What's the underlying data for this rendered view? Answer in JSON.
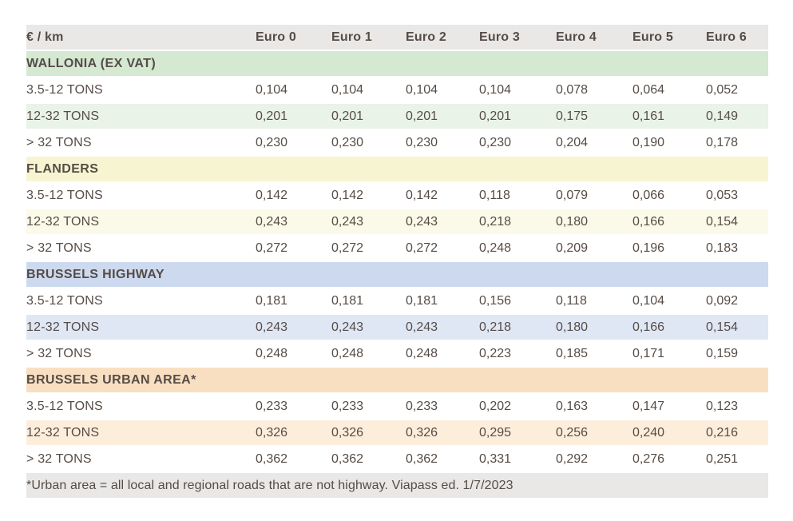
{
  "chart_data": {
    "type": "table",
    "unit_label": "€ / km",
    "columns": [
      "Euro 0",
      "Euro 1",
      "Euro 2",
      "Euro 3",
      "Euro 4",
      "Euro 5",
      "Euro 6"
    ],
    "sections": [
      {
        "name": "WALLONIA (EX VAT)",
        "color": "green",
        "rows": [
          {
            "label": "3.5-12 TONS",
            "values": [
              "0,104",
              "0,104",
              "0,104",
              "0,104",
              "0,078",
              "0,064",
              "0,052"
            ]
          },
          {
            "label": "12-32 TONS",
            "values": [
              "0,201",
              "0,201",
              "0,201",
              "0,201",
              "0,175",
              "0,161",
              "0,149"
            ]
          },
          {
            "label": "> 32 TONS",
            "values": [
              "0,230",
              "0,230",
              "0,230",
              "0,230",
              "0,204",
              "0,190",
              "0,178"
            ]
          }
        ]
      },
      {
        "name": "FLANDERS",
        "color": "yellow",
        "rows": [
          {
            "label": "3.5-12 TONS",
            "values": [
              "0,142",
              "0,142",
              "0,142",
              "0,118",
              "0,079",
              "0,066",
              "0,053"
            ]
          },
          {
            "label": "12-32 TONS",
            "values": [
              "0,243",
              "0,243",
              "0,243",
              "0,218",
              "0,180",
              "0,166",
              "0,154"
            ]
          },
          {
            "label": "> 32 TONS",
            "values": [
              "0,272",
              "0,272",
              "0,272",
              "0,248",
              "0,209",
              "0,196",
              "0,183"
            ]
          }
        ]
      },
      {
        "name": "BRUSSELS HIGHWAY",
        "color": "blue",
        "rows": [
          {
            "label": "3.5-12 TONS",
            "values": [
              "0,181",
              "0,181",
              "0,181",
              "0,156",
              "0,118",
              "0,104",
              "0,092"
            ]
          },
          {
            "label": "12-32 TONS",
            "values": [
              "0,243",
              "0,243",
              "0,243",
              "0,218",
              "0,180",
              "0,166",
              "0,154"
            ]
          },
          {
            "label": "> 32 TONS",
            "values": [
              "0,248",
              "0,248",
              "0,248",
              "0,223",
              "0,185",
              "0,171",
              "0,159"
            ]
          }
        ]
      },
      {
        "name": "BRUSSELS URBAN AREA*",
        "color": "orange",
        "rows": [
          {
            "label": "3.5-12 TONS",
            "values": [
              "0,233",
              "0,233",
              "0,233",
              "0,202",
              "0,163",
              "0,147",
              "0,123"
            ]
          },
          {
            "label": "12-32 TONS",
            "values": [
              "0,326",
              "0,326",
              "0,326",
              "0,295",
              "0,256",
              "0,240",
              "0,216"
            ]
          },
          {
            "label": "> 32 TONS",
            "values": [
              "0,362",
              "0,362",
              "0,362",
              "0,331",
              "0,292",
              "0,276",
              "0,251"
            ]
          }
        ]
      }
    ],
    "footnote": "*Urban area = all local and regional roads that are not highway. Viapass ed. 1/7/2023"
  },
  "colors": {
    "text": "#564c46",
    "header_row_bg": "#e9e8e7",
    "footnote_bg": "#e9e8e7",
    "row_white": "#ffffff",
    "green": {
      "header": "#d4e8d2",
      "tint": "#e9f3e7"
    },
    "yellow": {
      "header": "#f7f5d1",
      "tint": "#fbfae8"
    },
    "blue": {
      "header": "#cdd9ee",
      "tint": "#dfe7f5"
    },
    "orange": {
      "header": "#f9dfc2",
      "tint": "#fdeedb"
    }
  }
}
